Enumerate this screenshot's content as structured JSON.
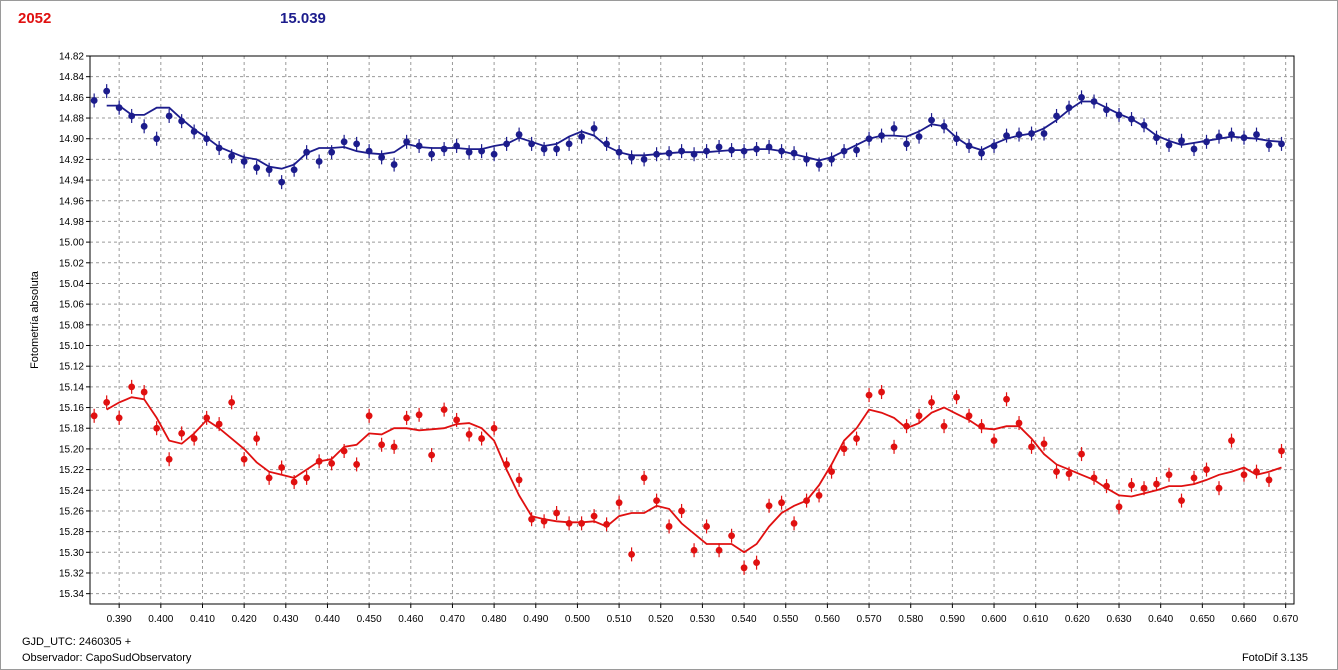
{
  "header": {
    "left_value": "2052",
    "left_color": "#e01010",
    "right_value": "15.039",
    "right_color": "#1c1c8c"
  },
  "footer": {
    "gjd_label": "GJD_UTC: 2460305 +",
    "observer_label": "Observador: CapoSudObservatory",
    "version_label": "FotoDif 3.135"
  },
  "chart_data": {
    "type": "scatter",
    "ylabel": "Fotometría absoluta",
    "xlim": [
      0.383,
      0.672
    ],
    "ylim": [
      14.82,
      15.35
    ],
    "y_inverted": true,
    "grid": true,
    "x_ticks": [
      "0.390",
      "0.400",
      "0.410",
      "0.420",
      "0.430",
      "0.440",
      "0.450",
      "0.460",
      "0.470",
      "0.480",
      "0.490",
      "0.500",
      "0.510",
      "0.520",
      "0.530",
      "0.540",
      "0.550",
      "0.560",
      "0.570",
      "0.580",
      "0.590",
      "0.600",
      "0.610",
      "0.620",
      "0.630",
      "0.640",
      "0.650",
      "0.660",
      "0.670"
    ],
    "y_ticks": [
      "14.82",
      "14.84",
      "14.86",
      "14.88",
      "14.90",
      "14.92",
      "14.94",
      "14.96",
      "14.98",
      "15.00",
      "15.02",
      "15.04",
      "15.06",
      "15.08",
      "15.10",
      "15.12",
      "15.14",
      "15.16",
      "15.18",
      "15.20",
      "15.22",
      "15.24",
      "15.26",
      "15.28",
      "15.30",
      "15.32",
      "15.34"
    ],
    "series": [
      {
        "color": "#1c1c8c",
        "x": [
          0.384,
          0.387,
          0.39,
          0.393,
          0.396,
          0.399,
          0.402,
          0.405,
          0.408,
          0.411,
          0.414,
          0.417,
          0.42,
          0.423,
          0.426,
          0.429,
          0.432,
          0.435,
          0.438,
          0.441,
          0.444,
          0.447,
          0.45,
          0.453,
          0.456,
          0.459,
          0.462,
          0.465,
          0.468,
          0.471,
          0.474,
          0.477,
          0.48,
          0.483,
          0.486,
          0.489,
          0.492,
          0.495,
          0.498,
          0.501,
          0.504,
          0.507,
          0.51,
          0.513,
          0.516,
          0.519,
          0.522,
          0.525,
          0.528,
          0.531,
          0.534,
          0.537,
          0.54,
          0.543,
          0.546,
          0.549,
          0.552,
          0.555,
          0.558,
          0.561,
          0.564,
          0.567,
          0.57,
          0.573,
          0.576,
          0.579,
          0.582,
          0.585,
          0.588,
          0.591,
          0.594,
          0.597,
          0.6,
          0.603,
          0.606,
          0.609,
          0.612,
          0.615,
          0.618,
          0.621,
          0.624,
          0.627,
          0.63,
          0.633,
          0.636,
          0.639,
          0.642,
          0.645,
          0.648,
          0.651,
          0.654,
          0.657,
          0.66,
          0.663,
          0.666,
          0.669
        ],
        "y": [
          14.863,
          14.854,
          14.87,
          14.878,
          14.888,
          14.9,
          14.878,
          14.883,
          14.893,
          14.9,
          14.909,
          14.917,
          14.922,
          14.928,
          14.93,
          14.942,
          14.93,
          14.913,
          14.922,
          14.913,
          14.903,
          14.905,
          14.912,
          14.918,
          14.925,
          14.903,
          14.907,
          14.915,
          14.91,
          14.907,
          14.913,
          14.912,
          14.915,
          14.905,
          14.896,
          14.905,
          14.91,
          14.91,
          14.905,
          14.898,
          14.89,
          14.905,
          14.913,
          14.918,
          14.92,
          14.915,
          14.914,
          14.912,
          14.915,
          14.912,
          14.908,
          14.911,
          14.912,
          14.91,
          14.908,
          14.912,
          14.914,
          14.92,
          14.925,
          14.92,
          14.912,
          14.911,
          14.9,
          14.897,
          14.89,
          14.905,
          14.898,
          14.882,
          14.888,
          14.9,
          14.907,
          14.914,
          14.907,
          14.897,
          14.896,
          14.895,
          14.895,
          14.878,
          14.87,
          14.86,
          14.864,
          14.872,
          14.877,
          14.881,
          14.887,
          14.899,
          14.906,
          14.902,
          14.91,
          14.903,
          14.898,
          14.896,
          14.899,
          14.896,
          14.906,
          14.905
        ],
        "fit_x": [
          0.387,
          0.39,
          0.393,
          0.396,
          0.399,
          0.402,
          0.405,
          0.408,
          0.411,
          0.414,
          0.417,
          0.42,
          0.423,
          0.426,
          0.429,
          0.432,
          0.435,
          0.438,
          0.441,
          0.444,
          0.447,
          0.45,
          0.453,
          0.456,
          0.459,
          0.462,
          0.465,
          0.468,
          0.471,
          0.474,
          0.477,
          0.48,
          0.483,
          0.486,
          0.489,
          0.492,
          0.495,
          0.498,
          0.501,
          0.504,
          0.507,
          0.51,
          0.513,
          0.516,
          0.519,
          0.522,
          0.525,
          0.528,
          0.531,
          0.534,
          0.537,
          0.54,
          0.543,
          0.546,
          0.549,
          0.552,
          0.555,
          0.558,
          0.561,
          0.564,
          0.567,
          0.57,
          0.573,
          0.576,
          0.579,
          0.582,
          0.585,
          0.588,
          0.591,
          0.594,
          0.597,
          0.6,
          0.603,
          0.606,
          0.609,
          0.612,
          0.615,
          0.618,
          0.621,
          0.624,
          0.627,
          0.63,
          0.633,
          0.636,
          0.639,
          0.642,
          0.645,
          0.648,
          0.651,
          0.654,
          0.657,
          0.66,
          0.663,
          0.666,
          0.669
        ],
        "fit_y": [
          14.868,
          14.868,
          14.877,
          14.877,
          14.87,
          14.87,
          14.881,
          14.891,
          14.899,
          14.908,
          14.913,
          14.918,
          14.92,
          14.927,
          14.929,
          14.925,
          14.914,
          14.909,
          14.909,
          14.908,
          14.912,
          14.914,
          14.915,
          14.913,
          14.905,
          14.908,
          14.909,
          14.909,
          14.909,
          14.91,
          14.91,
          14.907,
          14.905,
          14.899,
          14.903,
          14.907,
          14.905,
          14.898,
          14.893,
          14.897,
          14.907,
          14.913,
          14.916,
          14.916,
          14.915,
          14.914,
          14.913,
          14.913,
          14.913,
          14.912,
          14.911,
          14.911,
          14.91,
          14.91,
          14.912,
          14.915,
          14.918,
          14.921,
          14.918,
          14.912,
          14.906,
          14.9,
          14.897,
          14.897,
          14.898,
          14.893,
          14.886,
          14.888,
          14.899,
          14.907,
          14.911,
          14.905,
          14.9,
          14.897,
          14.895,
          14.89,
          14.882,
          14.872,
          14.864,
          14.864,
          14.87,
          14.876,
          14.881,
          14.888,
          14.897,
          14.902,
          14.906,
          14.904,
          14.902,
          14.9,
          14.898,
          14.899,
          14.9,
          14.902,
          14.903
        ]
      },
      {
        "color": "#e01010",
        "x": [
          0.384,
          0.387,
          0.39,
          0.393,
          0.396,
          0.399,
          0.402,
          0.405,
          0.408,
          0.411,
          0.414,
          0.417,
          0.42,
          0.423,
          0.426,
          0.429,
          0.432,
          0.435,
          0.438,
          0.441,
          0.444,
          0.447,
          0.45,
          0.453,
          0.456,
          0.459,
          0.462,
          0.465,
          0.468,
          0.471,
          0.474,
          0.477,
          0.48,
          0.483,
          0.486,
          0.489,
          0.492,
          0.495,
          0.498,
          0.501,
          0.504,
          0.507,
          0.51,
          0.513,
          0.516,
          0.519,
          0.522,
          0.525,
          0.528,
          0.531,
          0.534,
          0.537,
          0.54,
          0.543,
          0.546,
          0.549,
          0.552,
          0.555,
          0.558,
          0.561,
          0.564,
          0.567,
          0.57,
          0.573,
          0.576,
          0.579,
          0.582,
          0.585,
          0.588,
          0.591,
          0.594,
          0.597,
          0.6,
          0.603,
          0.606,
          0.609,
          0.612,
          0.615,
          0.618,
          0.621,
          0.624,
          0.627,
          0.63,
          0.633,
          0.636,
          0.639,
          0.642,
          0.645,
          0.648,
          0.651,
          0.654,
          0.657,
          0.66,
          0.663,
          0.666,
          0.669
        ],
        "y": [
          15.168,
          15.155,
          15.17,
          15.14,
          15.145,
          15.18,
          15.21,
          15.185,
          15.19,
          15.17,
          15.176,
          15.155,
          15.21,
          15.19,
          15.228,
          15.218,
          15.232,
          15.228,
          15.212,
          15.214,
          15.202,
          15.215,
          15.168,
          15.196,
          15.198,
          15.17,
          15.167,
          15.206,
          15.162,
          15.172,
          15.186,
          15.19,
          15.18,
          15.215,
          15.23,
          15.268,
          15.27,
          15.262,
          15.272,
          15.272,
          15.265,
          15.273,
          15.252,
          15.302,
          15.228,
          15.25,
          15.275,
          15.26,
          15.298,
          15.275,
          15.298,
          15.284,
          15.315,
          15.31,
          15.255,
          15.252,
          15.272,
          15.25,
          15.245,
          15.222,
          15.2,
          15.19,
          15.148,
          15.145,
          15.198,
          15.178,
          15.168,
          15.155,
          15.178,
          15.15,
          15.168,
          15.178,
          15.192,
          15.152,
          15.175,
          15.198,
          15.195,
          15.222,
          15.224,
          15.205,
          15.228,
          15.236,
          15.256,
          15.235,
          15.238,
          15.234,
          15.225,
          15.25,
          15.228,
          15.22,
          15.238,
          15.192,
          15.225,
          15.222,
          15.23,
          15.202
        ],
        "fit_x": [
          0.387,
          0.39,
          0.393,
          0.396,
          0.399,
          0.402,
          0.405,
          0.408,
          0.411,
          0.414,
          0.417,
          0.42,
          0.423,
          0.426,
          0.429,
          0.432,
          0.435,
          0.438,
          0.441,
          0.444,
          0.447,
          0.45,
          0.453,
          0.456,
          0.459,
          0.462,
          0.465,
          0.468,
          0.471,
          0.474,
          0.477,
          0.48,
          0.483,
          0.486,
          0.489,
          0.492,
          0.495,
          0.498,
          0.501,
          0.504,
          0.507,
          0.51,
          0.513,
          0.516,
          0.519,
          0.522,
          0.525,
          0.528,
          0.531,
          0.534,
          0.537,
          0.54,
          0.543,
          0.546,
          0.549,
          0.552,
          0.555,
          0.558,
          0.561,
          0.564,
          0.567,
          0.57,
          0.573,
          0.576,
          0.579,
          0.582,
          0.585,
          0.588,
          0.591,
          0.594,
          0.597,
          0.6,
          0.603,
          0.606,
          0.609,
          0.612,
          0.615,
          0.618,
          0.621,
          0.624,
          0.627,
          0.63,
          0.633,
          0.636,
          0.639,
          0.642,
          0.645,
          0.648,
          0.651,
          0.654,
          0.657,
          0.66,
          0.663,
          0.666,
          0.669
        ],
        "fit_y": [
          15.162,
          15.155,
          15.15,
          15.152,
          15.17,
          15.192,
          15.195,
          15.185,
          15.172,
          15.18,
          15.19,
          15.2,
          15.213,
          15.222,
          15.225,
          15.228,
          15.22,
          15.212,
          15.21,
          15.198,
          15.196,
          15.185,
          15.186,
          15.18,
          15.18,
          15.182,
          15.181,
          15.18,
          15.176,
          15.175,
          15.18,
          15.192,
          15.22,
          15.245,
          15.265,
          15.268,
          15.27,
          15.271,
          15.271,
          15.27,
          15.275,
          15.265,
          15.262,
          15.262,
          15.255,
          15.258,
          15.272,
          15.282,
          15.292,
          15.292,
          15.292,
          15.3,
          15.292,
          15.275,
          15.262,
          15.255,
          15.25,
          15.235,
          15.215,
          15.192,
          15.18,
          15.162,
          15.165,
          15.17,
          15.18,
          15.175,
          15.165,
          15.16,
          15.166,
          15.172,
          15.18,
          15.181,
          15.178,
          15.178,
          15.19,
          15.205,
          15.215,
          15.22,
          15.225,
          15.23,
          15.238,
          15.245,
          15.246,
          15.243,
          15.24,
          15.236,
          15.236,
          15.234,
          15.23,
          15.225,
          15.222,
          15.218,
          15.225,
          15.222,
          15.218
        ]
      }
    ]
  }
}
